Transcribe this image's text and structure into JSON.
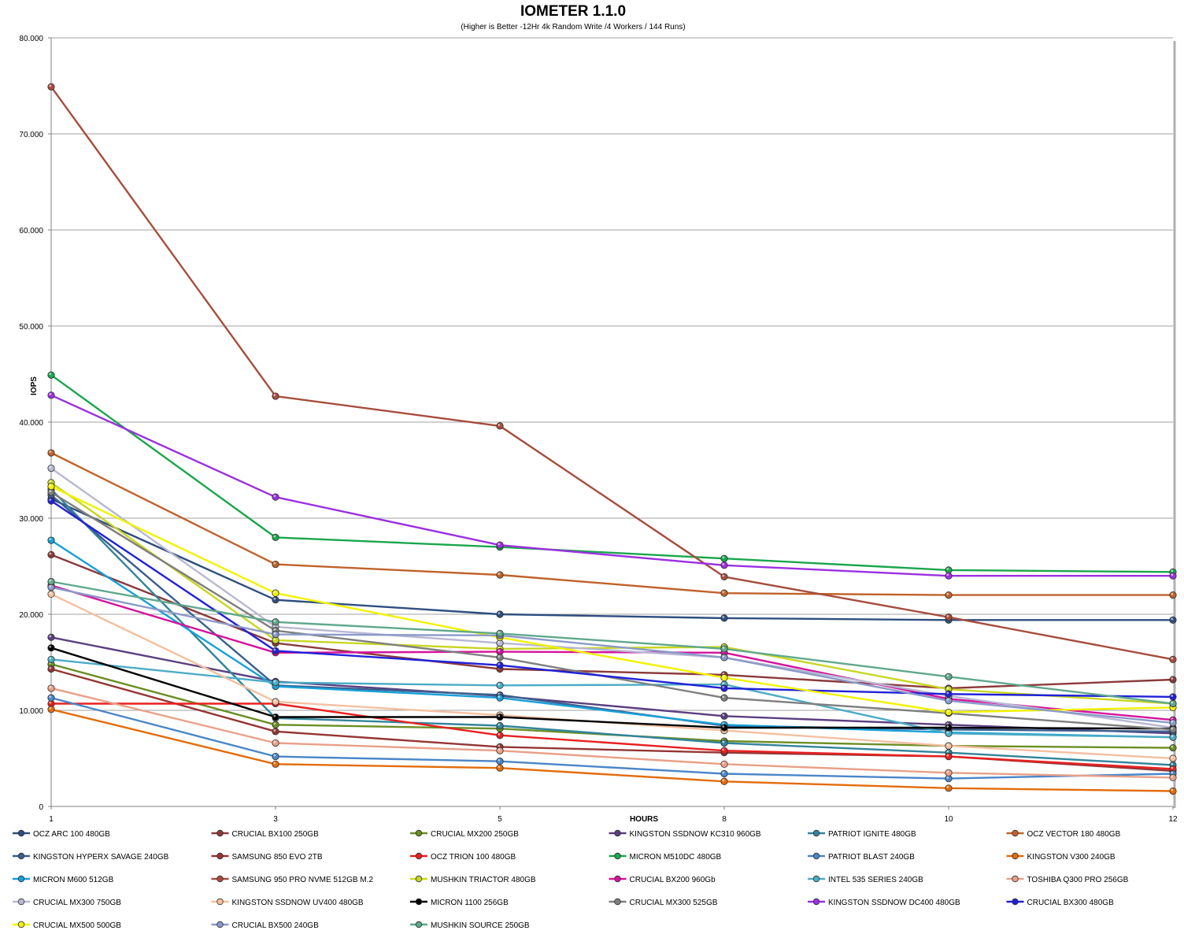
{
  "chart_data": {
    "type": "line",
    "title": "IOMETER 1.1.0",
    "subtitle": "(Higher is Better -12Hr 4k Random Write /4 Workers / 144 Runs)",
    "xlabel": "HOURS",
    "ylabel": "IOPS",
    "x": [
      1,
      3,
      5,
      8,
      10,
      12
    ],
    "x_tick_labels": [
      "1",
      "3",
      "5",
      "8",
      "10",
      "12"
    ],
    "ylim": [
      0,
      80000
    ],
    "y_ticks": [
      0,
      10000,
      20000,
      30000,
      40000,
      50000,
      60000,
      70000,
      80000
    ],
    "y_tick_labels": [
      "0",
      "10.000",
      "20.000",
      "30.000",
      "40.000",
      "50.000",
      "60.000",
      "70.000",
      "80.000"
    ],
    "grid": true,
    "legend_position": "bottom",
    "series": [
      {
        "name": "OCZ ARC 100 480GB",
        "color": "#2E4F7F",
        "values": [
          32000,
          21500,
          20000,
          19600,
          19400,
          19400
        ]
      },
      {
        "name": "CRUCIAL BX100 250GB",
        "color": "#8B3A3A",
        "values": [
          26200,
          17000,
          14300,
          13700,
          12300,
          13200
        ]
      },
      {
        "name": "CRUCIAL MX200 250GB",
        "color": "#6B8E23",
        "values": [
          14800,
          8500,
          8100,
          6800,
          6300,
          6100
        ]
      },
      {
        "name": "KINGSTON SSDNOW KC310 960GB",
        "color": "#5B3F7F",
        "values": [
          17600,
          13000,
          11500,
          9400,
          8500,
          7600
        ]
      },
      {
        "name": "PATRIOT IGNITE 480GB",
        "color": "#31849B",
        "values": [
          33000,
          9200,
          8400,
          6600,
          5600,
          4300
        ]
      },
      {
        "name": "OCZ VECTOR 180 480GB",
        "color": "#C0622A",
        "values": [
          36800,
          25200,
          24100,
          22200,
          22000,
          22000
        ]
      },
      {
        "name": "KINGSTON HYPERX SAVAGE 240GB",
        "color": "#3A5F8F",
        "values": [
          32400,
          12600,
          11600,
          8400,
          8000,
          7800
        ]
      },
      {
        "name": "SAMSUNG 850 EVO 2TB",
        "color": "#943634",
        "values": [
          14300,
          7800,
          6200,
          5600,
          5200,
          3700
        ]
      },
      {
        "name": "OCZ TRION 100 480GB",
        "color": "#E82020",
        "values": [
          10700,
          10700,
          7400,
          5800,
          5200,
          3900
        ]
      },
      {
        "name": "MICRON M510DC 480GB",
        "color": "#1AA64C",
        "values": [
          44900,
          28000,
          27000,
          25800,
          24600,
          24400
        ]
      },
      {
        "name": "PATRIOT BLAST 240GB",
        "color": "#4A86C8",
        "values": [
          11300,
          5200,
          4700,
          3400,
          2900,
          3400
        ]
      },
      {
        "name": "KINGSTON V300 240GB",
        "color": "#E36C0A",
        "values": [
          10100,
          4400,
          4000,
          2600,
          1900,
          1600
        ]
      },
      {
        "name": "MICRON M600 512GB",
        "color": "#17A0D8",
        "values": [
          27700,
          12500,
          11300,
          8500,
          7700,
          7200
        ]
      },
      {
        "name": "SAMSUNG 950 PRO NVME 512GB M.2",
        "color": "#A64D3D",
        "values": [
          74900,
          42700,
          39600,
          23900,
          19700,
          15300
        ]
      },
      {
        "name": "MUSHKIN TRIACTOR 480GB",
        "color": "#C8D620",
        "values": [
          33700,
          17300,
          16400,
          16600,
          12200,
          10700
        ]
      },
      {
        "name": "CRUCIAL BX200 960Gb",
        "color": "#D4149C",
        "values": [
          23000,
          16000,
          16100,
          16000,
          11200,
          9000
        ]
      },
      {
        "name": "INTEL 535 SERIES 240GB",
        "color": "#4BACC6",
        "values": [
          15300,
          12900,
          12600,
          12700,
          7600,
          7200
        ]
      },
      {
        "name": "TOSHIBA Q300 PRO 256GB",
        "color": "#E8A088",
        "values": [
          12300,
          6600,
          5800,
          4400,
          3500,
          3000
        ]
      },
      {
        "name": "CRUCIAL MX300 750GB",
        "color": "#B8B8D4",
        "values": [
          35200,
          18700,
          17000,
          15500,
          11500,
          8200
        ]
      },
      {
        "name": "KINGSTON SSDNOW UV400 480GB",
        "color": "#F4C0A0",
        "values": [
          22100,
          10900,
          9500,
          7900,
          6300,
          5000
        ]
      },
      {
        "name": "MICRON 1100 256GB",
        "color": "#000000",
        "values": [
          16500,
          9300,
          9300,
          8200,
          8200,
          8100
        ]
      },
      {
        "name": "CRUCIAL MX300 525GB",
        "color": "#7F7F7F",
        "values": [
          32700,
          18300,
          15500,
          11300,
          9700,
          8000
        ]
      },
      {
        "name": "KINGSTON SSDNOW DC400 480GB",
        "color": "#9B30E0",
        "values": [
          42800,
          32200,
          27200,
          25100,
          24000,
          24000
        ]
      },
      {
        "name": "CRUCIAL BX300 480GB",
        "color": "#2020D8",
        "values": [
          31800,
          16200,
          14700,
          12300,
          11700,
          11400
        ]
      },
      {
        "name": "CRUCIAL MX500 500GB",
        "color": "#F2F200",
        "values": [
          33300,
          22200,
          17600,
          13400,
          9800,
          10300
        ]
      },
      {
        "name": "CRUCIAL BX500 240GB",
        "color": "#8A9AC8",
        "values": [
          22800,
          17900,
          17800,
          15500,
          11000,
          8700
        ]
      },
      {
        "name": "MUSHKIN SOURCE 250GB",
        "color": "#5FA88C",
        "values": [
          23400,
          19200,
          18000,
          16400,
          13500,
          10700
        ]
      }
    ]
  }
}
